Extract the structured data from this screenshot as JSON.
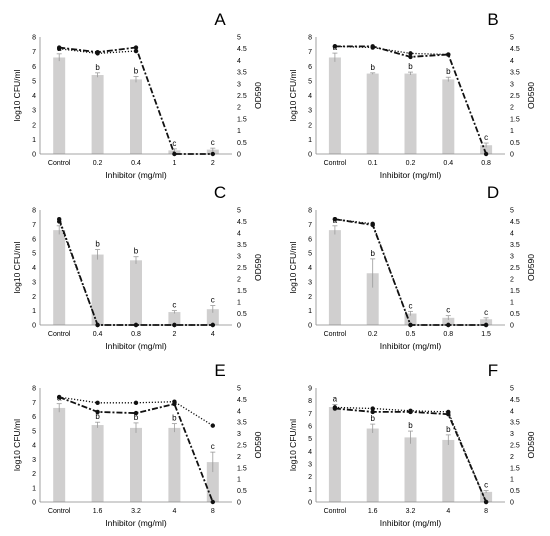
{
  "chart_data": [
    {
      "type": "bar",
      "panel": "A",
      "categories": [
        "Control",
        "0.2",
        "0.4",
        "1",
        "2"
      ],
      "xlabel": "Inhibitor (mg/ml)",
      "ylabel": "log10 CFU/ml",
      "y2label": "OD590",
      "ylim": [
        0,
        8
      ],
      "yticks": [
        0,
        1,
        2,
        3,
        4,
        5,
        6,
        7,
        8
      ],
      "y2lim": [
        0,
        5
      ],
      "y2ticks": [
        "0",
        "0.5",
        "1",
        "1.5",
        "2",
        "2.5",
        "3",
        "3.5",
        "4",
        "4.5",
        "5"
      ],
      "bars": [
        6.6,
        5.4,
        5.1,
        0.25,
        0.3
      ],
      "errors": [
        0.25,
        0.15,
        0.2,
        0.1,
        0.1
      ],
      "letters": [
        "a",
        "b",
        "b",
        "c",
        "c"
      ],
      "line_dotted": [
        4.5,
        4.3,
        4.4,
        null,
        null
      ],
      "line_dashed": [
        4.55,
        4.35,
        4.55,
        0,
        0
      ]
    },
    {
      "type": "bar",
      "panel": "B",
      "categories": [
        "Control",
        "0.1",
        "0.2",
        "0.4",
        "0.8"
      ],
      "xlabel": "Inhibitor (mg/ml)",
      "ylabel": "log10 CFU/ml",
      "y2label": "OD590",
      "ylim": [
        0,
        8
      ],
      "yticks": [
        0,
        1,
        2,
        3,
        4,
        5,
        6,
        7,
        8
      ],
      "y2lim": [
        0,
        5
      ],
      "y2ticks": [
        "0",
        "0.5",
        "1",
        "1.5",
        "2",
        "2.5",
        "3",
        "3.5",
        "4",
        "4.5",
        "5"
      ],
      "bars": [
        6.6,
        5.5,
        5.5,
        5.1,
        0.6
      ],
      "errors": [
        0.3,
        0.05,
        0.1,
        0.15,
        0.15
      ],
      "letters": [
        "a",
        "b",
        "b",
        "b",
        "c"
      ],
      "line_dotted": [
        4.6,
        4.55,
        4.3,
        4.25,
        null
      ],
      "line_dashed": [
        4.6,
        4.6,
        4.15,
        4.25,
        0
      ]
    },
    {
      "type": "bar",
      "panel": "C",
      "categories": [
        "Control",
        "0.4",
        "0.8",
        "2",
        "4"
      ],
      "xlabel": "Inhibitor (mg/ml)",
      "ylabel": "log10 CFU/ml",
      "y2label": "OD590",
      "ylim": [
        0,
        8
      ],
      "yticks": [
        0,
        1,
        2,
        3,
        4,
        5,
        6,
        7,
        8
      ],
      "y2lim": [
        0,
        5
      ],
      "y2ticks": [
        "0",
        "0.5",
        "1",
        "1.5",
        "2",
        "2.5",
        "3",
        "3.5",
        "4",
        "4.5",
        "5"
      ],
      "bars": [
        6.6,
        4.9,
        4.5,
        0.9,
        1.1
      ],
      "errors": [
        0.3,
        0.35,
        0.25,
        0.1,
        0.25
      ],
      "letters": [
        "a",
        "b",
        "b",
        "c",
        "c"
      ],
      "line_dotted": [
        4.5,
        0,
        0,
        0,
        0
      ],
      "line_dashed": [
        4.6,
        0,
        0,
        0,
        0
      ]
    },
    {
      "type": "bar",
      "panel": "D",
      "categories": [
        "Control",
        "0.2",
        "0.5",
        "0.8",
        "1.5"
      ],
      "xlabel": "Inhibitor (mg/ml)",
      "ylabel": "log10 CFU/ml",
      "y2label": "OD590",
      "ylim": [
        0,
        8
      ],
      "yticks": [
        0,
        1,
        2,
        3,
        4,
        5,
        6,
        7,
        8
      ],
      "y2lim": [
        0,
        5
      ],
      "y2ticks": [
        "0",
        "0.5",
        "1",
        "1.5",
        "2",
        "2.5",
        "3",
        "3.5",
        "4",
        "4.5",
        "5"
      ],
      "bars": [
        6.6,
        3.6,
        0.8,
        0.5,
        0.4
      ],
      "errors": [
        0.3,
        1.0,
        0.15,
        0.15,
        0.1
      ],
      "letters": [
        "a",
        "b",
        "c",
        "c",
        "c"
      ],
      "line_dotted": [
        4.6,
        4.4,
        0,
        0,
        0
      ],
      "line_dashed": [
        4.6,
        4.35,
        0,
        0,
        0
      ]
    },
    {
      "type": "bar",
      "panel": "E",
      "categories": [
        "Control",
        "1.6",
        "3.2",
        "4",
        "8"
      ],
      "xlabel": "Inhibitor (mg/ml)",
      "ylabel": "log10 CFU/ml",
      "y2label": "OD590",
      "ylim": [
        0,
        8
      ],
      "yticks": [
        0,
        1,
        2,
        3,
        4,
        5,
        6,
        7,
        8
      ],
      "y2lim": [
        0,
        5
      ],
      "y2ticks": [
        "0",
        "0.5",
        "1",
        "1.5",
        "2",
        "2.5",
        "3",
        "3.5",
        "4",
        "4.5",
        "5"
      ],
      "bars": [
        6.6,
        5.4,
        5.2,
        5.2,
        2.8
      ],
      "errors": [
        0.3,
        0.2,
        0.35,
        0.3,
        0.7
      ],
      "letters": [
        "a",
        "b",
        "b",
        "b",
        "c"
      ],
      "line_dotted": [
        4.6,
        4.35,
        4.35,
        4.4,
        3.35
      ],
      "line_dashed": [
        4.6,
        3.95,
        3.9,
        4.3,
        0
      ]
    },
    {
      "type": "bar",
      "panel": "F",
      "categories": [
        "Control",
        "1.6",
        "3.2",
        "4",
        "8"
      ],
      "xlabel": "Inhibitor (mg/ml)",
      "ylabel": "log10 CFU/ml",
      "y2label": "OD590",
      "ylim": [
        0,
        9
      ],
      "yticks": [
        0,
        1,
        2,
        3,
        4,
        5,
        6,
        7,
        8,
        9
      ],
      "y2lim": [
        0,
        5
      ],
      "y2ticks": [
        "0",
        "0.5",
        "1",
        "1.5",
        "2",
        "2.5",
        "3",
        "3.5",
        "4",
        "4.5",
        "5"
      ],
      "bars": [
        7.5,
        5.8,
        5.1,
        4.9,
        0.8
      ],
      "errors": [
        0.2,
        0.35,
        0.5,
        0.4,
        0.1
      ],
      "letters": [
        "a",
        "b",
        "b",
        "b",
        "c"
      ],
      "line_dotted": [
        4.15,
        4.1,
        4.0,
        3.95,
        0
      ],
      "line_dashed": [
        4.1,
        3.95,
        3.95,
        3.85,
        0
      ]
    }
  ]
}
